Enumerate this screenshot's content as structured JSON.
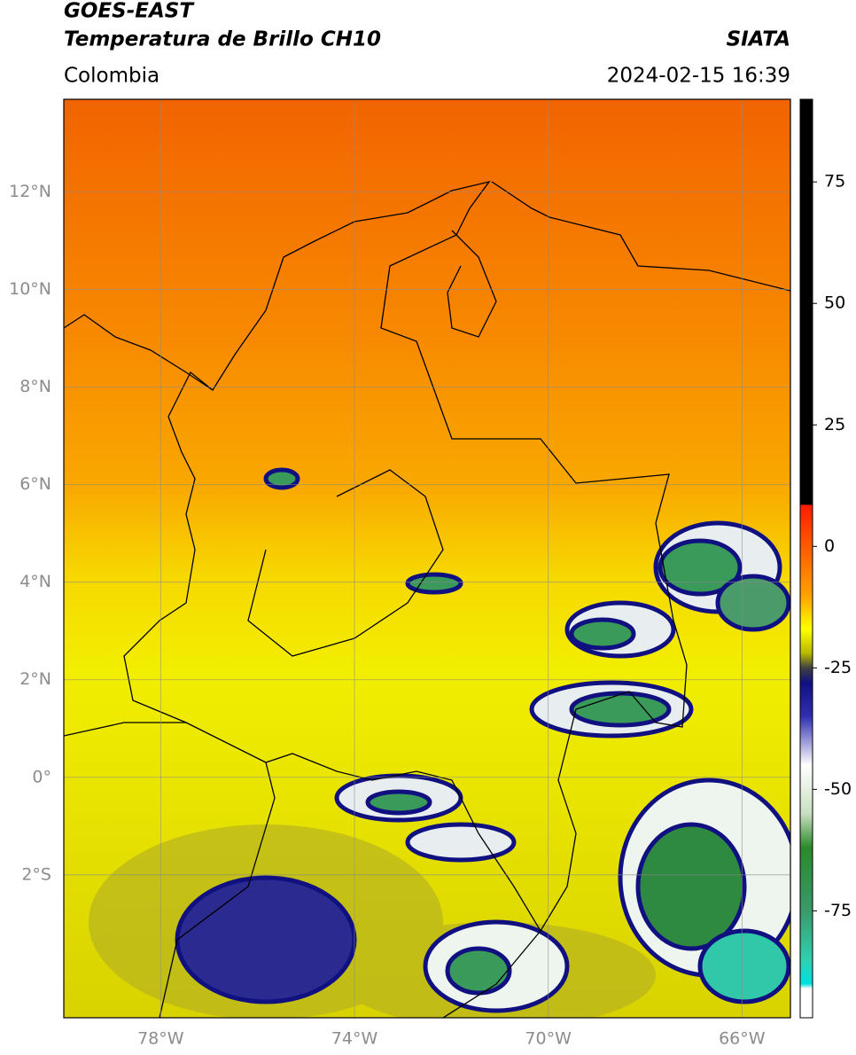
{
  "header": {
    "title": "GOES-EAST",
    "subtitle": "Temperatura de Brillo CH10",
    "source": "SIATA",
    "region": "Colombia",
    "datetime": "2024-02-15 16:39"
  },
  "map": {
    "lat_range": [
      -4.93,
      13.9
    ],
    "lon_range": [
      -80,
      -65
    ],
    "lat_ticks": [
      {
        "value": 12,
        "label": "12°N"
      },
      {
        "value": 10,
        "label": "10°N"
      },
      {
        "value": 8,
        "label": "8°N"
      },
      {
        "value": 6,
        "label": "6°N"
      },
      {
        "value": 4,
        "label": "4°N"
      },
      {
        "value": 2,
        "label": "2°N"
      },
      {
        "value": 0,
        "label": "0°"
      },
      {
        "value": -2,
        "label": "2°S"
      }
    ],
    "lon_ticks": [
      {
        "value": -78,
        "label": "78°W"
      },
      {
        "value": -74,
        "label": "74°W"
      },
      {
        "value": -70,
        "label": "70°W"
      },
      {
        "value": -66,
        "label": "66°W"
      }
    ]
  },
  "colorbar": {
    "range": [
      -97,
      92
    ],
    "ticks": [
      75,
      50,
      25,
      0,
      -25,
      -50,
      -75
    ],
    "colorscale": [
      {
        "value": 92,
        "color": "#000000"
      },
      {
        "value": 8.6,
        "color": "#000000"
      },
      {
        "value": 8.5,
        "color": "#ff1a00"
      },
      {
        "value": 0,
        "color": "#ff5a00"
      },
      {
        "value": -10,
        "color": "#ffa000"
      },
      {
        "value": -17,
        "color": "#ffff00"
      },
      {
        "value": -22,
        "color": "#b8b800"
      },
      {
        "value": -25,
        "color": "#404040"
      },
      {
        "value": -28,
        "color": "#101080"
      },
      {
        "value": -35,
        "color": "#3030b0"
      },
      {
        "value": -45,
        "color": "#ffffff"
      },
      {
        "value": -55,
        "color": "#c8e0c0"
      },
      {
        "value": -62,
        "color": "#2a8a2a"
      },
      {
        "value": -75,
        "color": "#3a9a6a"
      },
      {
        "value": -85,
        "color": "#30d0b0"
      },
      {
        "value": -90,
        "color": "#00e0e0"
      },
      {
        "value": -91,
        "color": "#ffffff"
      },
      {
        "value": -97,
        "color": "#ffffff"
      }
    ]
  }
}
